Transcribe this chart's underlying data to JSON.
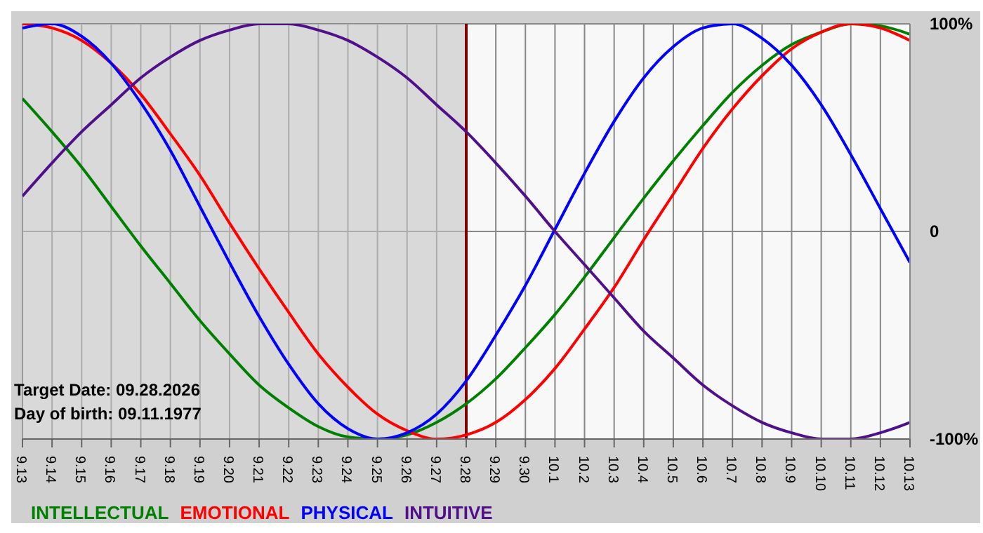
{
  "chart_data": {
    "type": "line",
    "categories": [
      "9.13",
      "9.14",
      "9.15",
      "9.16",
      "9.17",
      "9.18",
      "9.19",
      "9.20",
      "9.21",
      "9.22",
      "9.23",
      "9.24",
      "9.25",
      "9.26",
      "9.27",
      "9.28",
      "9.29",
      "9.30",
      "10.1",
      "10.2",
      "10.3",
      "10.4",
      "10.5",
      "10.6",
      "10.7",
      "10.8",
      "10.9",
      "10.10",
      "10.11",
      "10.12",
      "10.13"
    ],
    "series": [
      {
        "name": "INTELLECTUAL",
        "color": "#008000",
        "values": [
          64,
          48,
          31,
          12,
          -7,
          -25,
          -43,
          -59,
          -74,
          -85,
          -94,
          -99,
          -100,
          -98,
          -92,
          -83,
          -71,
          -56,
          -40,
          -22,
          -3,
          16,
          34,
          51,
          67,
          80,
          90,
          96,
          100,
          99,
          95
        ]
      },
      {
        "name": "EMOTIONAL",
        "color": "#ff0000",
        "values": [
          100,
          98,
          92,
          81,
          66,
          47,
          27,
          4,
          -18,
          -39,
          -59,
          -75,
          -88,
          -96,
          -100,
          -98,
          -92,
          -81,
          -66,
          -47,
          -27,
          -4,
          18,
          40,
          59,
          75,
          88,
          96,
          100,
          98,
          92
        ]
      },
      {
        "name": "PHYSICAL",
        "color": "#0000ff",
        "values": [
          98,
          100,
          94,
          81,
          62,
          39,
          12,
          -15,
          -41,
          -64,
          -83,
          -95,
          -100,
          -97,
          -88,
          -72,
          -50,
          -26,
          1,
          28,
          53,
          74,
          89,
          98,
          100,
          93,
          80,
          61,
          37,
          11,
          -15
        ]
      },
      {
        "name": "INTUITIVE",
        "color": "#50108a",
        "values": [
          17,
          33,
          48,
          61,
          74,
          84,
          92,
          97,
          100,
          100,
          97,
          92,
          84,
          74,
          61,
          48,
          33,
          17,
          0,
          -16,
          -32,
          -48,
          -61,
          -74,
          -84,
          -92,
          -97,
          -100,
          -100,
          -97,
          -92
        ]
      }
    ],
    "ylim": [
      -100,
      100
    ],
    "yticks": [
      {
        "value": 100,
        "label": "100%"
      },
      0,
      {
        "value": -100,
        "label": "-100%"
      }
    ],
    "grid": true,
    "legend": "bottom",
    "marker": "none",
    "line_style": "solid",
    "ref_lines": [
      {
        "axis": "x",
        "value": "9.28",
        "color": "#800000"
      }
    ],
    "bands": [
      {
        "axis": "x",
        "from": "9.13",
        "to": "9.28",
        "color": "#c4c4c4"
      }
    ],
    "annotations": [
      "Target Date: 09.28.2026",
      "Day of birth: 09.11.1977"
    ]
  }
}
